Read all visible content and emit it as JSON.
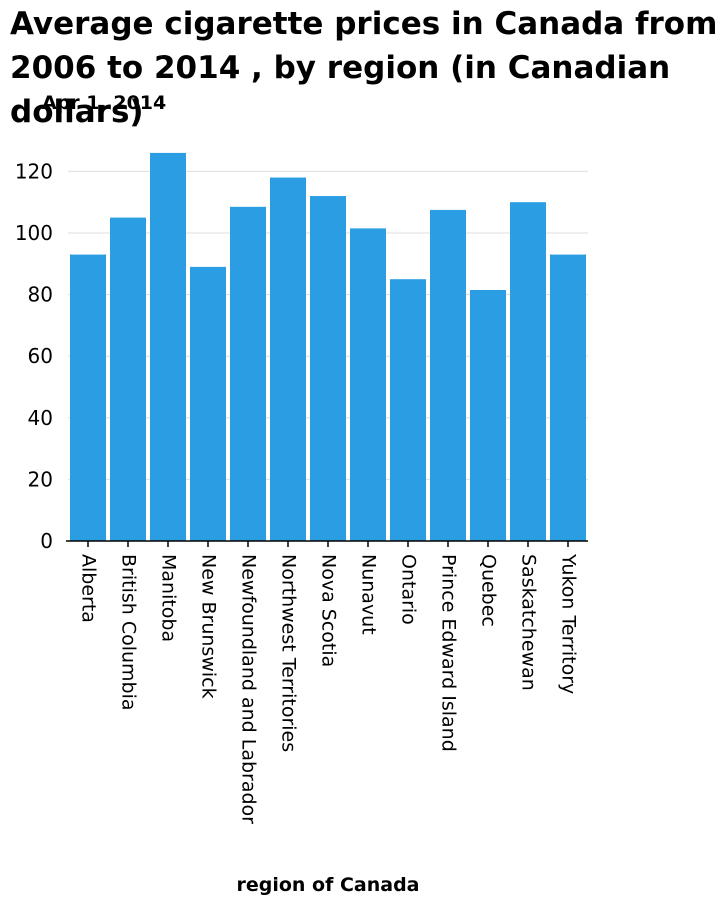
{
  "chart_data": {
    "type": "bar",
    "title": "Average cigarette prices in Canada from 2006 to 2014 , by region (in Canadian dollars)",
    "subtitle": "Apr 1, 2014",
    "xlabel": "region of Canada",
    "ylabel": "",
    "categories": [
      "Alberta",
      "British Columbia",
      "Manitoba",
      "New Brunswick",
      "Newfoundland and Labrador",
      "Northwest Territories",
      "Nova Scotia",
      "Nunavut",
      "Ontario",
      "Prince Edward Island",
      "Quebec",
      "Saskatchewan",
      "Yukon Territory"
    ],
    "values": [
      93,
      105,
      126,
      89,
      108.5,
      118,
      112,
      101.5,
      85,
      107.5,
      81.5,
      110,
      93
    ],
    "ylim": [
      0,
      130
    ],
    "yticks": [
      0,
      20,
      40,
      60,
      80,
      100,
      120
    ],
    "grid": true,
    "legend": "none",
    "bar_color": "#2b9de3"
  }
}
